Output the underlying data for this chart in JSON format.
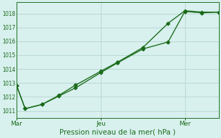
{
  "title": "",
  "xlabel": "Pression niveau de la mer( hPa )",
  "background_color": "#d8f0ee",
  "grid_color": "#b8d8d4",
  "line_color": "#1a6b1a",
  "ylim": [
    1010.5,
    1018.8
  ],
  "yticks": [
    1011,
    1012,
    1013,
    1014,
    1015,
    1016,
    1017,
    1018
  ],
  "x_tick_labels": [
    "Mar",
    "Jeu",
    "Mer"
  ],
  "x_tick_positions": [
    0.0,
    0.417,
    0.833
  ],
  "xlim": [
    0.0,
    1.0
  ],
  "series1_x": [
    0.0,
    0.042,
    0.125,
    0.208,
    0.292,
    0.417,
    0.5,
    0.625,
    0.75,
    0.833,
    0.917,
    1.0
  ],
  "series1_y": [
    1012.8,
    1011.15,
    1011.45,
    1012.1,
    1012.85,
    1013.85,
    1014.5,
    1015.55,
    1017.3,
    1018.2,
    1018.1,
    1018.1
  ],
  "series2_x": [
    0.0,
    0.042,
    0.125,
    0.208,
    0.292,
    0.417,
    0.5,
    0.625,
    0.75,
    0.833,
    0.917,
    1.0
  ],
  "series2_y": [
    1012.8,
    1011.15,
    1011.45,
    1012.05,
    1012.65,
    1013.75,
    1014.45,
    1015.45,
    1015.95,
    1018.15,
    1018.05,
    1018.1
  ],
  "marker": "D",
  "marker_size": 2.5,
  "line_width": 1.0
}
